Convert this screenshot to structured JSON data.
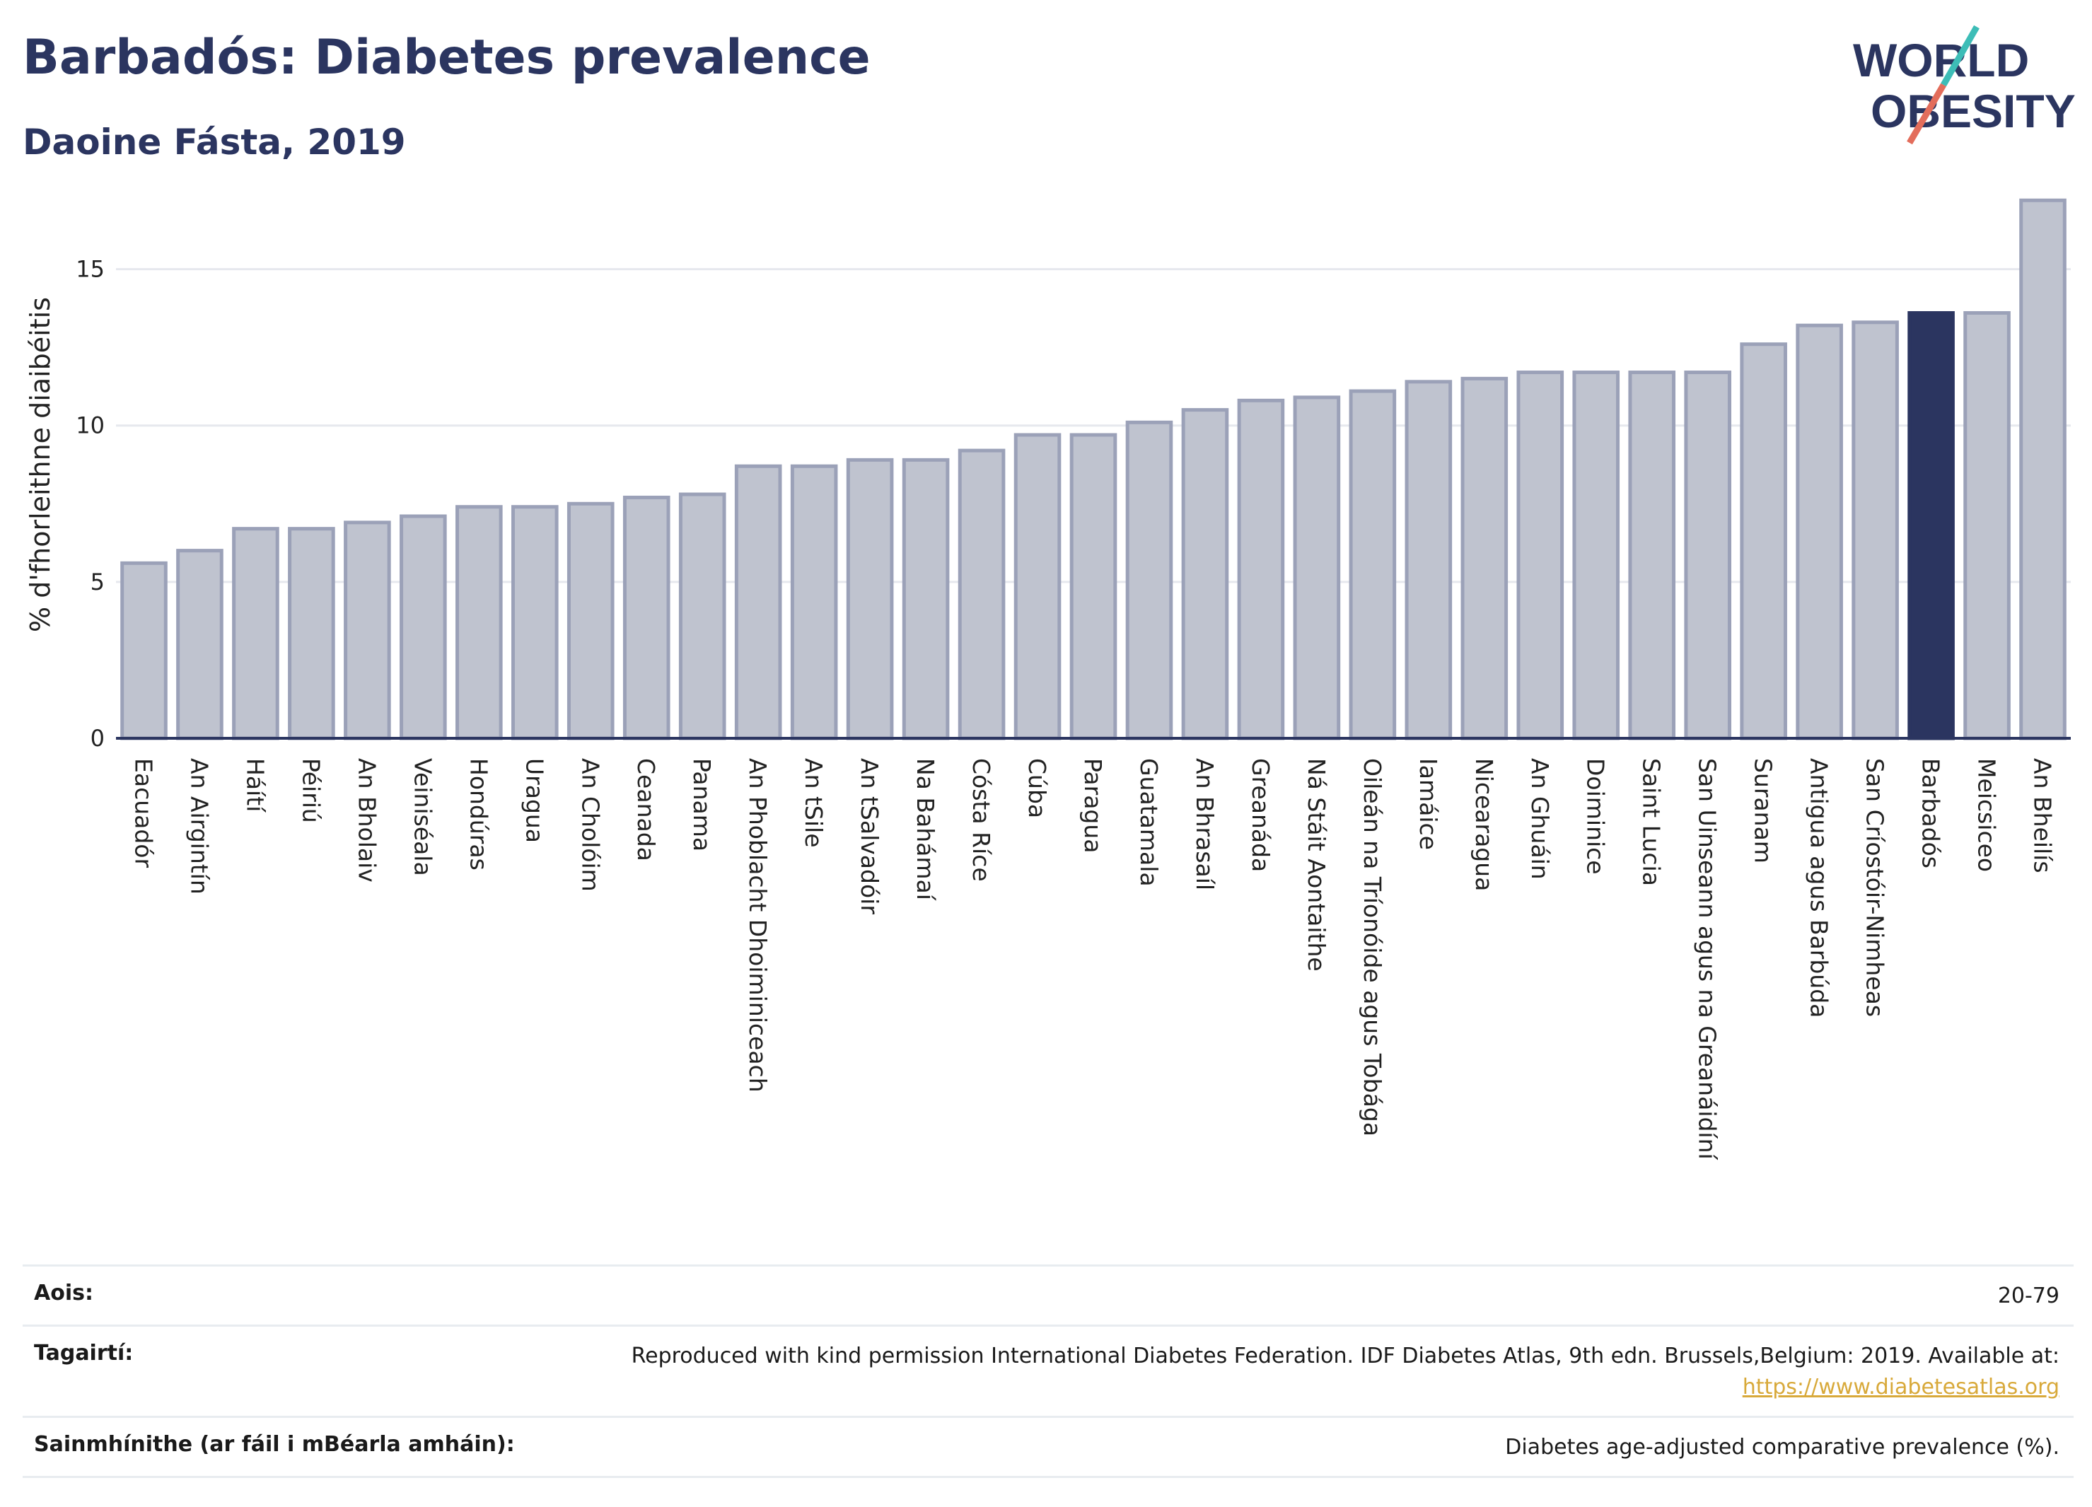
{
  "header": {
    "title": "Barbadós: Diabetes prevalence",
    "subtitle": "Daoine Fásta, 2019"
  },
  "logo": {
    "line1": "WORLD",
    "line2": "OBESITY",
    "icon": "world-obesity-logo"
  },
  "colors": {
    "default_bar": "#bfc3cf",
    "default_bar_stroke": "#9ba1b8",
    "highlight_bar": "#2b3560",
    "title": "#2b3560"
  },
  "chart_data": {
    "type": "bar",
    "ylabel": "% d'fhorleithne diaibéitis",
    "ylim": [
      0,
      17.5
    ],
    "yticks": [
      0,
      5,
      10,
      15
    ],
    "grid": true,
    "highlight": "Barbadós",
    "categories": [
      "Eacuadór",
      "An Airgintín",
      "Háítí",
      "Péiriú",
      "An Bholaiv",
      "Veiniséala",
      "Hondúras",
      "Uragua",
      "An Cholóim",
      "Ceanada",
      "Panama",
      "An Phoblacht Dhoiminiceach",
      "An tSile",
      "An tSalvadóir",
      "Na Bahámaí",
      "Cósta Ríce",
      "Cúba",
      "Paragua",
      "Guatamala",
      "An Bhrasaíl",
      "Greanáda",
      "Ná Stáit Aontaithe",
      "Oileán na Tríonóide agus Tobága",
      "Iamáice",
      "Nicearagua",
      "An Ghuáin",
      "Doiminice",
      "Saint Lucia",
      "San Uinseann agus na Greanáidíní",
      "Suranam",
      "Antigua agus Barbúda",
      "San Críostóir-Nimheas",
      "Barbadós",
      "Meicsiceo",
      "An Bheilís"
    ],
    "values": [
      5.6,
      6.0,
      6.7,
      6.7,
      6.9,
      7.1,
      7.4,
      7.4,
      7.5,
      7.7,
      7.8,
      8.7,
      8.7,
      8.9,
      8.9,
      9.2,
      9.7,
      9.7,
      10.1,
      10.5,
      10.8,
      10.9,
      11.1,
      11.4,
      11.5,
      11.7,
      11.7,
      11.7,
      11.7,
      12.6,
      13.2,
      13.3,
      13.6,
      13.6,
      17.2
    ]
  },
  "footer": {
    "age_label": "Aois:",
    "age_value": "20-79",
    "refs_label": "Tagairtí:",
    "refs_value": "Reproduced with kind permission International Diabetes Federation. IDF Diabetes Atlas, 9th edn. Brussels,Belgium: 2019. Available at:",
    "refs_link": "https://www.diabetesatlas.org",
    "defs_label": "Sainmhínithe (ar fáil i mBéarla amháin):",
    "defs_value": "Diabetes age-adjusted comparative prevalence (%)."
  }
}
